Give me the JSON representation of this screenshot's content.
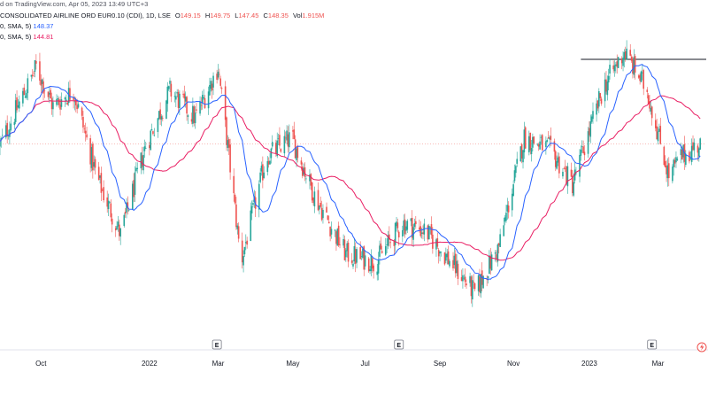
{
  "header": {
    "published": "d on TradingView.com, Apr 05, 2023 13:49 UTC+3",
    "symbol": "CONSOLIDATED AIRLINE ORD EUR0.10 (CDI), 1D, LSE",
    "open_label": "O",
    "open": "149.15",
    "high_label": "H",
    "high": "149.75",
    "low_label": "L",
    "low": "147.45",
    "close_label": "C",
    "close": "148.35",
    "vol_label": "Vol",
    "vol": "1.915M",
    "ma1_label": "0, SMA, 5)",
    "ma1_value": "148.37",
    "ma2_label": "0, SMA, 5)",
    "ma2_value": "144.81"
  },
  "chart_data": {
    "type": "candlestick",
    "title": "CONSOLIDATED AIRLINE ORD EUR0.10 (CDI), 1D, LSE",
    "x_ticks": [
      "Oct",
      "2022",
      "Mar",
      "May",
      "Jul",
      "Sep",
      "Nov",
      "2023",
      "Mar"
    ],
    "earnings_markers": [
      "E",
      "E",
      "E"
    ],
    "ylim_approx": [
      100,
      175
    ],
    "close_series_approx": [
      [
        "2021-09",
        148
      ],
      [
        "2021-10-01",
        168
      ],
      [
        "2021-10-15",
        158
      ],
      [
        "2021-11-01",
        162
      ],
      [
        "2021-11-20",
        140
      ],
      [
        "2021-12-10",
        125
      ],
      [
        "2021-12-31",
        148
      ],
      [
        "2022-01-20",
        162
      ],
      [
        "2022-02-10",
        155
      ],
      [
        "2022-03-01",
        168
      ],
      [
        "2022-03-10",
        145
      ],
      [
        "2022-03-20",
        118
      ],
      [
        "2022-04-10",
        145
      ],
      [
        "2022-05-01",
        150
      ],
      [
        "2022-05-20",
        135
      ],
      [
        "2022-06-15",
        120
      ],
      [
        "2022-07-10",
        118
      ],
      [
        "2022-08-01",
        128
      ],
      [
        "2022-08-20",
        126
      ],
      [
        "2022-09-10",
        118
      ],
      [
        "2022-09-30",
        110
      ],
      [
        "2022-10-20",
        122
      ],
      [
        "2022-11-10",
        150
      ],
      [
        "2022-12-01",
        147
      ],
      [
        "2022-12-20",
        138
      ],
      [
        "2023-01-15",
        163
      ],
      [
        "2023-02-01",
        172
      ],
      [
        "2023-02-20",
        162
      ],
      [
        "2023-03-10",
        140
      ],
      [
        "2023-03-20",
        145
      ],
      [
        "2023-04-05",
        148.35
      ]
    ],
    "series": [
      {
        "name": "SMA",
        "color": "#2962ff",
        "last_value": 148.37
      },
      {
        "name": "SMA",
        "color": "#e91e63",
        "last_value": 144.81
      }
    ],
    "resistance_level_approx": 170,
    "current_price_line": 148.35,
    "up_color": "#26a69a",
    "down_color": "#ef5350",
    "grid": false
  }
}
